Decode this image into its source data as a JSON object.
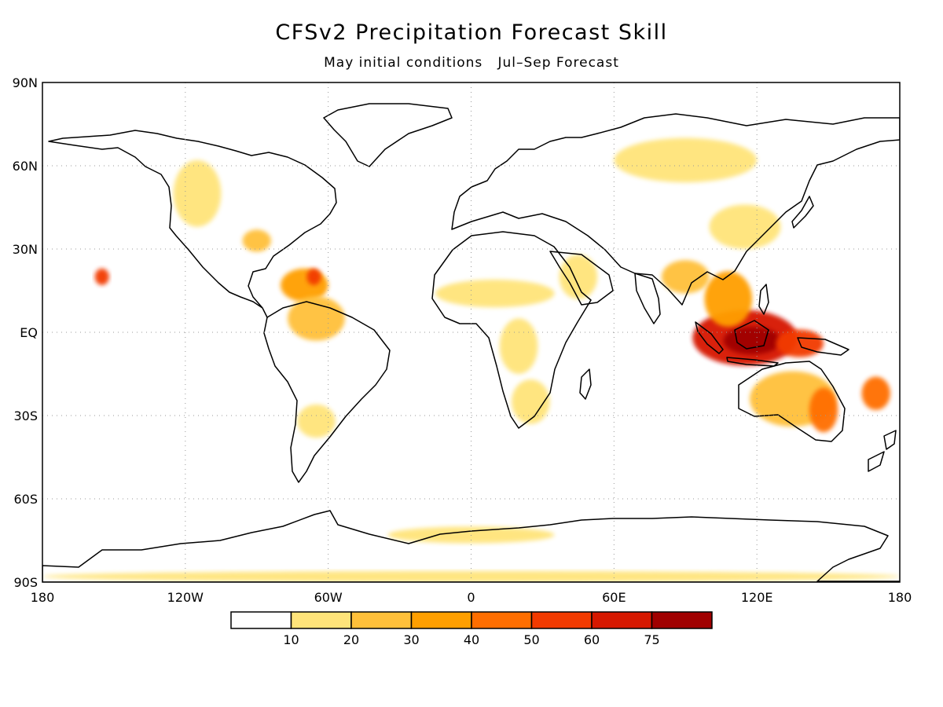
{
  "map": {
    "title": "CFSv2 Precipitation Forecast Skill",
    "subtitle": "May initial conditions   Jul–Sep Forecast",
    "projection": "equirectangular",
    "extent": {
      "lon": [
        -180,
        180
      ],
      "lat": [
        -90,
        90
      ]
    },
    "lat_ticks": [
      {
        "value": 90,
        "label": "90N"
      },
      {
        "value": 60,
        "label": "60N"
      },
      {
        "value": 30,
        "label": "30N"
      },
      {
        "value": 0,
        "label": "EQ"
      },
      {
        "value": -30,
        "label": "30S"
      },
      {
        "value": -60,
        "label": "60S"
      },
      {
        "value": -90,
        "label": "90S"
      }
    ],
    "lon_ticks": [
      {
        "value": -180,
        "label": "180"
      },
      {
        "value": -120,
        "label": "120W"
      },
      {
        "value": -60,
        "label": "60W"
      },
      {
        "value": 0,
        "label": "0"
      },
      {
        "value": 60,
        "label": "60E"
      },
      {
        "value": 120,
        "label": "120E"
      },
      {
        "value": 180,
        "label": "180"
      }
    ],
    "grid": "dotted at 30° intervals",
    "legend": {
      "labels": [
        "10",
        "20",
        "30",
        "40",
        "50",
        "60",
        "75"
      ],
      "colors": [
        "#ffffff",
        "#ffe47a",
        "#ffc03a",
        "#ff9f00",
        "#ff6e00",
        "#f23a00",
        "#d61800",
        "#a00000"
      ]
    },
    "skill_regions": [
      {
        "region": "Maritime Continent",
        "lon": 115,
        "lat": -2,
        "rx": 22,
        "ry": 10,
        "level": 6
      },
      {
        "region": "Maritime Continent core",
        "lon": 118,
        "lat": -3,
        "rx": 12,
        "ry": 5,
        "level": 7
      },
      {
        "region": "New Guinea",
        "lon": 138,
        "lat": -4,
        "rx": 10,
        "ry": 5,
        "level": 5
      },
      {
        "region": "Indochina / Philippines",
        "lon": 108,
        "lat": 12,
        "rx": 10,
        "ry": 10,
        "level": 3
      },
      {
        "region": "Bay of Bengal",
        "lon": 90,
        "lat": 20,
        "rx": 10,
        "ry": 6,
        "level": 2
      },
      {
        "region": "Australia",
        "lon": 135,
        "lat": -24,
        "rx": 18,
        "ry": 10,
        "level": 2
      },
      {
        "region": "Eastern Australia",
        "lon": 148,
        "lat": -28,
        "rx": 6,
        "ry": 8,
        "level": 4
      },
      {
        "region": "Southwest Pacific",
        "lon": 170,
        "lat": -22,
        "rx": 6,
        "ry": 6,
        "level": 4
      },
      {
        "region": "Caribbean",
        "lon": -70,
        "lat": 17,
        "rx": 10,
        "ry": 6,
        "level": 3
      },
      {
        "region": "Caribbean core",
        "lon": -66,
        "lat": 20,
        "rx": 3,
        "ry": 3,
        "level": 5
      },
      {
        "region": "Northern South America",
        "lon": -65,
        "lat": 5,
        "rx": 12,
        "ry": 8,
        "level": 2
      },
      {
        "region": "Hawaii area",
        "lon": -155,
        "lat": 20,
        "rx": 3,
        "ry": 3,
        "level": 5
      },
      {
        "region": "Sahel",
        "lon": 10,
        "lat": 14,
        "rx": 25,
        "ry": 5,
        "level": 1
      },
      {
        "region": "Arabia",
        "lon": 45,
        "lat": 20,
        "rx": 8,
        "ry": 8,
        "level": 1
      },
      {
        "region": "Southern Africa",
        "lon": 25,
        "lat": -25,
        "rx": 8,
        "ry": 8,
        "level": 1
      },
      {
        "region": "Central Africa",
        "lon": 20,
        "lat": -5,
        "rx": 8,
        "ry": 10,
        "level": 1
      },
      {
        "region": "Western North America",
        "lon": -115,
        "lat": 50,
        "rx": 10,
        "ry": 12,
        "level": 1
      },
      {
        "region": "Gulf region",
        "lon": -90,
        "lat": 33,
        "rx": 6,
        "ry": 4,
        "level": 2
      },
      {
        "region": "Siberia",
        "lon": 90,
        "lat": 62,
        "rx": 30,
        "ry": 8,
        "level": 1
      },
      {
        "region": "East Asia",
        "lon": 115,
        "lat": 38,
        "rx": 15,
        "ry": 8,
        "level": 1
      },
      {
        "region": "Argentina",
        "lon": -65,
        "lat": -32,
        "rx": 8,
        "ry": 6,
        "level": 1
      },
      {
        "region": "Antarctic coast",
        "lon": 0,
        "lat": -73,
        "rx": 35,
        "ry": 3,
        "level": 1
      },
      {
        "region": "South Pole band",
        "lon": 0,
        "lat": -88,
        "rx": 180,
        "ry": 2,
        "level": 1
      }
    ]
  }
}
